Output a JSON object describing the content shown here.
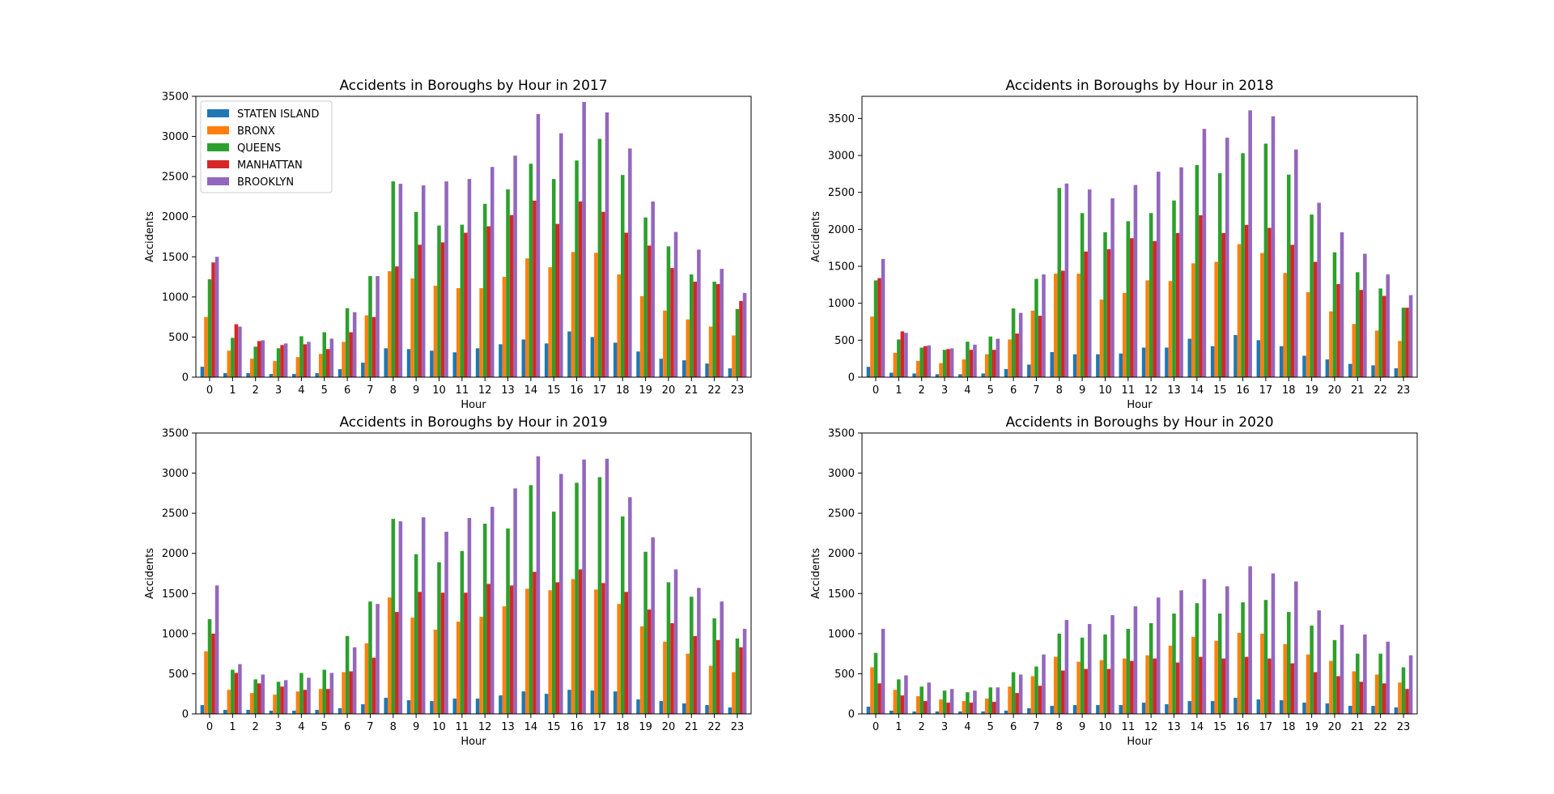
{
  "chart_data": [
    {
      "type": "bar",
      "title": "Accidents in Boroughs by Hour in 2017",
      "xlabel": "Hour",
      "ylabel": "Accidents",
      "ylim": [
        0,
        3500
      ],
      "yticks": [
        "0",
        "500",
        "1000",
        "1500",
        "2000",
        "2500",
        "3000",
        "3500"
      ],
      "legend": "upper-left",
      "categories": [
        "0",
        "1",
        "2",
        "3",
        "4",
        "5",
        "6",
        "7",
        "8",
        "9",
        "10",
        "11",
        "12",
        "13",
        "14",
        "15",
        "16",
        "17",
        "18",
        "19",
        "20",
        "21",
        "22",
        "23"
      ],
      "series": [
        {
          "name": "STATEN ISLAND",
          "color": "#1f77b4",
          "values": [
            130,
            50,
            50,
            40,
            40,
            50,
            100,
            180,
            360,
            350,
            330,
            310,
            360,
            410,
            470,
            420,
            570,
            500,
            430,
            320,
            230,
            210,
            170,
            110
          ]
        },
        {
          "name": "BRONX",
          "color": "#ff7f0e",
          "values": [
            750,
            330,
            230,
            200,
            250,
            290,
            440,
            770,
            1320,
            1230,
            1140,
            1110,
            1110,
            1250,
            1480,
            1370,
            1560,
            1550,
            1280,
            1010,
            830,
            720,
            630,
            520
          ]
        },
        {
          "name": "QUEENS",
          "color": "#2ca02c",
          "values": [
            1220,
            490,
            380,
            360,
            510,
            560,
            860,
            1260,
            2440,
            2060,
            1890,
            1900,
            2160,
            2340,
            2660,
            2470,
            2700,
            2970,
            2520,
            1990,
            1630,
            1280,
            1190,
            850
          ]
        },
        {
          "name": "MANHATTAN",
          "color": "#d62728",
          "values": [
            1430,
            660,
            450,
            400,
            410,
            350,
            560,
            750,
            1380,
            1650,
            1680,
            1800,
            1880,
            2020,
            2200,
            1910,
            2190,
            2060,
            1800,
            1640,
            1360,
            1190,
            1160,
            950
          ]
        },
        {
          "name": "BROOKLYN",
          "color": "#9467bd",
          "values": [
            1500,
            630,
            460,
            420,
            440,
            480,
            810,
            1260,
            2410,
            2390,
            2440,
            2470,
            2620,
            2760,
            3280,
            3040,
            3430,
            3300,
            2850,
            2190,
            1810,
            1590,
            1350,
            1050
          ]
        }
      ]
    },
    {
      "type": "bar",
      "title": "Accidents in Boroughs by Hour in 2018",
      "xlabel": "Hour",
      "ylabel": "Accidents",
      "ylim": [
        0,
        3800
      ],
      "yticks": [
        "0",
        "500",
        "1000",
        "1500",
        "2000",
        "2500",
        "3000",
        "3500"
      ],
      "legend": "none",
      "categories": [
        "0",
        "1",
        "2",
        "3",
        "4",
        "5",
        "6",
        "7",
        "8",
        "9",
        "10",
        "11",
        "12",
        "13",
        "14",
        "15",
        "16",
        "17",
        "18",
        "19",
        "20",
        "21",
        "22",
        "23"
      ],
      "series": [
        {
          "name": "STATEN ISLAND",
          "color": "#1f77b4",
          "values": [
            140,
            60,
            50,
            40,
            40,
            50,
            110,
            170,
            340,
            310,
            310,
            320,
            400,
            400,
            520,
            420,
            570,
            500,
            420,
            290,
            240,
            180,
            160,
            120
          ]
        },
        {
          "name": "BRONX",
          "color": "#ff7f0e",
          "values": [
            820,
            330,
            220,
            190,
            240,
            310,
            510,
            900,
            1400,
            1400,
            1050,
            1140,
            1310,
            1300,
            1540,
            1560,
            1800,
            1680,
            1410,
            1150,
            890,
            720,
            630,
            490
          ]
        },
        {
          "name": "QUEENS",
          "color": "#2ca02c",
          "values": [
            1310,
            510,
            400,
            370,
            480,
            550,
            930,
            1330,
            2560,
            2220,
            1960,
            2110,
            2220,
            2390,
            2870,
            2760,
            3030,
            3160,
            2740,
            2200,
            1690,
            1420,
            1200,
            940
          ]
        },
        {
          "name": "MANHATTAN",
          "color": "#d62728",
          "values": [
            1340,
            620,
            420,
            380,
            370,
            370,
            590,
            830,
            1440,
            1700,
            1730,
            1880,
            1840,
            1950,
            2190,
            1950,
            2060,
            2020,
            1790,
            1560,
            1260,
            1180,
            1100,
            940
          ]
        },
        {
          "name": "BROOKLYN",
          "color": "#9467bd",
          "values": [
            1600,
            600,
            430,
            390,
            440,
            520,
            870,
            1390,
            2620,
            2540,
            2420,
            2600,
            2780,
            2840,
            3360,
            3240,
            3610,
            3530,
            3080,
            2360,
            1960,
            1670,
            1390,
            1110
          ]
        }
      ]
    },
    {
      "type": "bar",
      "title": "Accidents in Boroughs by Hour in 2019",
      "xlabel": "Hour",
      "ylabel": "Accidents",
      "ylim": [
        0,
        3500
      ],
      "yticks": [
        "0",
        "500",
        "1000",
        "1500",
        "2000",
        "2500",
        "3000",
        "3500"
      ],
      "legend": "none",
      "categories": [
        "0",
        "1",
        "2",
        "3",
        "4",
        "5",
        "6",
        "7",
        "8",
        "9",
        "10",
        "11",
        "12",
        "13",
        "14",
        "15",
        "16",
        "17",
        "18",
        "19",
        "20",
        "21",
        "22",
        "23"
      ],
      "series": [
        {
          "name": "STATEN ISLAND",
          "color": "#1f77b4",
          "values": [
            110,
            50,
            50,
            40,
            40,
            50,
            70,
            120,
            200,
            170,
            160,
            190,
            190,
            230,
            280,
            250,
            300,
            290,
            280,
            180,
            160,
            130,
            110,
            80
          ]
        },
        {
          "name": "BRONX",
          "color": "#ff7f0e",
          "values": [
            780,
            300,
            260,
            240,
            280,
            310,
            520,
            880,
            1450,
            1200,
            1050,
            1150,
            1210,
            1340,
            1560,
            1540,
            1680,
            1550,
            1370,
            1090,
            900,
            750,
            600,
            520
          ]
        },
        {
          "name": "QUEENS",
          "color": "#2ca02c",
          "values": [
            1180,
            550,
            430,
            400,
            510,
            550,
            970,
            1400,
            2430,
            1990,
            1890,
            2030,
            2370,
            2310,
            2850,
            2520,
            2880,
            2950,
            2460,
            2020,
            1640,
            1460,
            1190,
            940
          ]
        },
        {
          "name": "MANHATTAN",
          "color": "#d62728",
          "values": [
            1000,
            510,
            380,
            340,
            300,
            310,
            530,
            700,
            1270,
            1520,
            1510,
            1510,
            1620,
            1600,
            1770,
            1640,
            1800,
            1630,
            1520,
            1300,
            1130,
            970,
            920,
            830
          ]
        },
        {
          "name": "BROOKLYN",
          "color": "#9467bd",
          "values": [
            1600,
            620,
            490,
            420,
            450,
            510,
            830,
            1370,
            2400,
            2450,
            2270,
            2440,
            2580,
            2810,
            3210,
            2990,
            3170,
            3180,
            2700,
            2200,
            1800,
            1570,
            1400,
            1060
          ]
        }
      ]
    },
    {
      "type": "bar",
      "title": "Accidents in Boroughs by Hour in 2020",
      "xlabel": "Hour",
      "ylabel": "Accidents",
      "ylim": [
        0,
        3500
      ],
      "yticks": [
        "0",
        "500",
        "1000",
        "1500",
        "2000",
        "2500",
        "3000",
        "3500"
      ],
      "legend": "none",
      "categories": [
        "0",
        "1",
        "2",
        "3",
        "4",
        "5",
        "6",
        "7",
        "8",
        "9",
        "10",
        "11",
        "12",
        "13",
        "14",
        "15",
        "16",
        "17",
        "18",
        "19",
        "20",
        "21",
        "22",
        "23"
      ],
      "series": [
        {
          "name": "STATEN ISLAND",
          "color": "#1f77b4",
          "values": [
            90,
            40,
            30,
            30,
            30,
            30,
            40,
            70,
            100,
            110,
            110,
            110,
            140,
            120,
            160,
            160,
            200,
            180,
            170,
            140,
            130,
            100,
            100,
            80
          ]
        },
        {
          "name": "BRONX",
          "color": "#ff7f0e",
          "values": [
            580,
            300,
            220,
            180,
            160,
            190,
            340,
            470,
            710,
            650,
            670,
            690,
            730,
            850,
            960,
            910,
            1010,
            1000,
            870,
            740,
            660,
            530,
            490,
            390
          ]
        },
        {
          "name": "QUEENS",
          "color": "#2ca02c",
          "values": [
            760,
            430,
            340,
            290,
            270,
            330,
            520,
            590,
            1000,
            950,
            990,
            1060,
            1130,
            1250,
            1380,
            1250,
            1390,
            1420,
            1270,
            1100,
            920,
            750,
            750,
            580
          ]
        },
        {
          "name": "MANHATTAN",
          "color": "#d62728",
          "values": [
            380,
            230,
            160,
            140,
            140,
            150,
            260,
            350,
            540,
            560,
            560,
            660,
            690,
            640,
            710,
            690,
            710,
            690,
            630,
            520,
            470,
            400,
            380,
            310
          ]
        },
        {
          "name": "BROOKLYN",
          "color": "#9467bd",
          "values": [
            1060,
            480,
            390,
            310,
            290,
            330,
            490,
            740,
            1170,
            1120,
            1230,
            1340,
            1450,
            1540,
            1680,
            1590,
            1840,
            1750,
            1650,
            1290,
            1110,
            990,
            900,
            730
          ]
        }
      ]
    }
  ]
}
